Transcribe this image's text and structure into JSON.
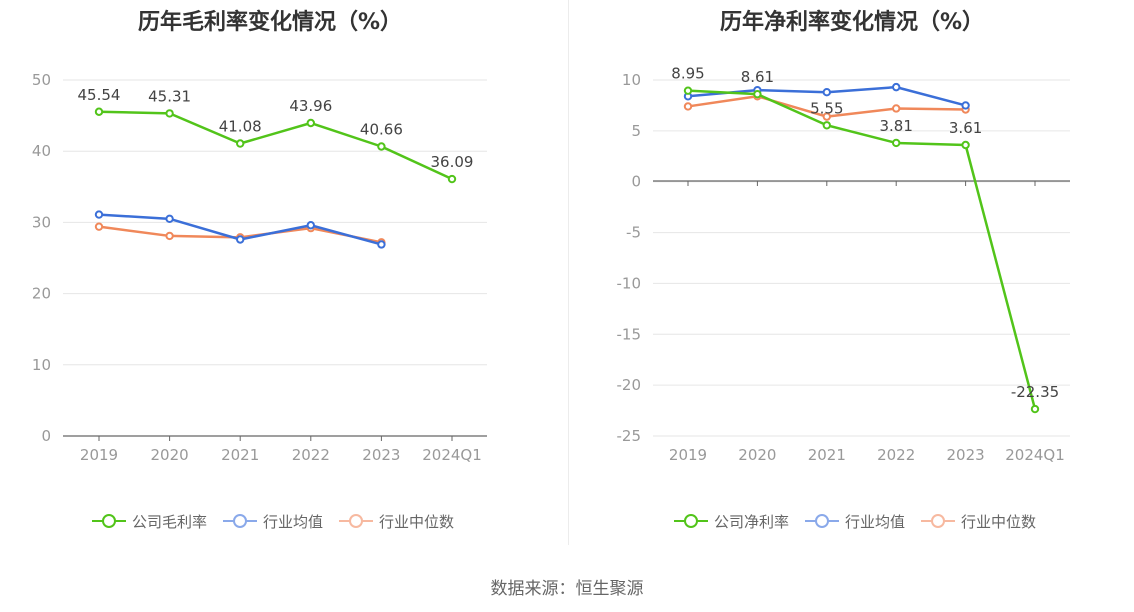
{
  "source": "数据来源：恒生聚源",
  "chart_data": [
    {
      "type": "line",
      "title": "历年毛利率变化情况（%）",
      "categories": [
        "2019",
        "2020",
        "2021",
        "2022",
        "2023",
        "2024Q1"
      ],
      "ylim": [
        0,
        50
      ],
      "yticks": [
        0,
        10,
        20,
        30,
        40,
        50
      ],
      "grid": true,
      "legend_position": "bottom",
      "series": [
        {
          "name": "公司毛利率",
          "color": "#52c41a",
          "values": [
            45.54,
            45.31,
            41.08,
            43.96,
            40.66,
            36.09
          ],
          "labels": [
            "45.54",
            "45.31",
            "41.08",
            "43.96",
            "40.66",
            "36.09"
          ]
        },
        {
          "name": "行业均值",
          "color": "#3b6fd8",
          "values": [
            31.1,
            30.5,
            27.6,
            29.6,
            26.9,
            null
          ]
        },
        {
          "name": "行业中位数",
          "color": "#f0885a",
          "values": [
            29.4,
            28.1,
            27.9,
            29.2,
            27.2,
            null
          ]
        }
      ],
      "legend_colors": [
        "#52c41a",
        "#8aa9ea",
        "#f7b9a0"
      ]
    },
    {
      "type": "line",
      "title": "历年净利率变化情况（%）",
      "categories": [
        "2019",
        "2020",
        "2021",
        "2022",
        "2023",
        "2024Q1"
      ],
      "ylim": [
        -25,
        10
      ],
      "yticks": [
        -25,
        -20,
        -15,
        -10,
        -5,
        0,
        5,
        10
      ],
      "grid": true,
      "legend_position": "bottom",
      "series": [
        {
          "name": "公司净利率",
          "color": "#52c41a",
          "values": [
            8.95,
            8.61,
            5.55,
            3.81,
            3.61,
            -22.35
          ],
          "labels": [
            "8.95",
            "8.61",
            "5.55",
            "3.81",
            "3.61",
            "-22.35"
          ]
        },
        {
          "name": "行业均值",
          "color": "#3b6fd8",
          "values": [
            8.4,
            9.0,
            8.8,
            9.3,
            7.5,
            null
          ]
        },
        {
          "name": "行业中位数",
          "color": "#f0885a",
          "values": [
            7.4,
            8.4,
            6.4,
            7.2,
            7.1,
            null
          ]
        }
      ],
      "legend_colors": [
        "#52c41a",
        "#8aa9ea",
        "#f7b9a0"
      ]
    }
  ]
}
